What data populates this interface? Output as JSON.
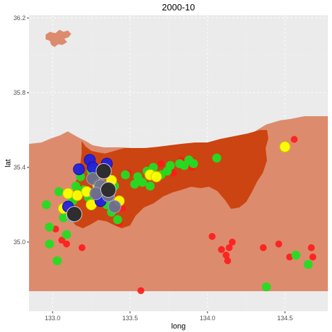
{
  "chart_data": {
    "type": "scatter",
    "title": "2000-10",
    "xlabel": "long",
    "ylabel": "lat",
    "xlim": [
      132.85,
      134.78
    ],
    "ylim": [
      34.62,
      36.22
    ],
    "x_ticks": [
      133.0,
      133.5,
      134.0,
      134.5
    ],
    "x_tick_labels": [
      "133.0",
      "133.5",
      "134.0",
      "134.5"
    ],
    "y_ticks": [
      35.0,
      35.4,
      35.8,
      36.2
    ],
    "y_tick_labels": [
      "35.0",
      "35.4",
      "35.8",
      "36.2"
    ],
    "grid": true,
    "legend": "none",
    "colors": {
      "panel_background": "#ebebeb",
      "land_outer": "#dd8b6d",
      "land_highlight": "#cc4411",
      "red": "#ff1a1a",
      "green": "#22dd22",
      "yellow": "#ffff00",
      "blue": "#2222dd",
      "slate": "#6a7090",
      "dark": "#2a2a2a"
    },
    "series": [
      {
        "color": "red",
        "points": [
          [
            133.02,
            35.07
          ],
          [
            133.06,
            35.01
          ],
          [
            133.09,
            34.99
          ],
          [
            133.19,
            34.97
          ],
          [
            133.43,
            35.1
          ],
          [
            133.45,
            35.18
          ],
          [
            133.49,
            35.37
          ],
          [
            133.55,
            35.34
          ],
          [
            133.57,
            34.74
          ],
          [
            133.62,
            35.39
          ],
          [
            133.7,
            35.42
          ],
          [
            133.78,
            35.37
          ],
          [
            133.83,
            35.44
          ],
          [
            133.9,
            35.4
          ],
          [
            134.03,
            35.03
          ],
          [
            134.09,
            34.96
          ],
          [
            134.12,
            34.93
          ],
          [
            134.14,
            34.97
          ],
          [
            134.13,
            34.9
          ],
          [
            134.16,
            35.0
          ],
          [
            134.36,
            34.97
          ],
          [
            134.46,
            34.99
          ],
          [
            134.53,
            34.92
          ],
          [
            134.56,
            35.55
          ],
          [
            134.67,
            34.97
          ],
          [
            134.68,
            34.92
          ]
        ]
      },
      {
        "color": "green",
        "points": [
          [
            132.96,
            35.2
          ],
          [
            132.98,
            35.08
          ],
          [
            132.98,
            34.99
          ],
          [
            133.03,
            34.9
          ],
          [
            133.04,
            35.27
          ],
          [
            133.07,
            35.13
          ],
          [
            133.09,
            35.04
          ],
          [
            133.11,
            35.25
          ],
          [
            133.13,
            35.22
          ],
          [
            133.15,
            35.3
          ],
          [
            133.18,
            35.35
          ],
          [
            133.2,
            35.28
          ],
          [
            133.23,
            35.24
          ],
          [
            133.25,
            35.38
          ],
          [
            133.35,
            35.2
          ],
          [
            133.38,
            35.16
          ],
          [
            133.4,
            35.3
          ],
          [
            133.42,
            35.12
          ],
          [
            133.47,
            35.36
          ],
          [
            133.53,
            35.31
          ],
          [
            133.55,
            35.35
          ],
          [
            133.58,
            35.32
          ],
          [
            133.61,
            35.38
          ],
          [
            133.63,
            35.3
          ],
          [
            133.65,
            35.4
          ],
          [
            133.7,
            35.36
          ],
          [
            133.74,
            35.38
          ],
          [
            133.76,
            35.41
          ],
          [
            133.82,
            35.42
          ],
          [
            133.85,
            35.41
          ],
          [
            133.88,
            35.44
          ],
          [
            133.91,
            35.42
          ],
          [
            134.06,
            35.45
          ],
          [
            134.38,
            34.76
          ],
          [
            134.57,
            34.93
          ],
          [
            134.65,
            34.88
          ]
        ]
      },
      {
        "color": "yellow",
        "points": [
          [
            133.07,
            35.18
          ],
          [
            133.1,
            35.26
          ],
          [
            133.16,
            35.25
          ],
          [
            133.22,
            35.27
          ],
          [
            133.25,
            35.2
          ],
          [
            133.29,
            35.31
          ],
          [
            133.38,
            35.33
          ],
          [
            133.43,
            35.22
          ],
          [
            133.63,
            35.36
          ],
          [
            133.67,
            35.35
          ],
          [
            134.5,
            35.51
          ]
        ]
      },
      {
        "color": "blue",
        "points": [
          [
            133.1,
            35.19
          ],
          [
            133.17,
            35.39
          ],
          [
            133.24,
            35.44
          ],
          [
            133.26,
            35.4
          ],
          [
            133.31,
            35.22
          ],
          [
            133.35,
            35.42
          ]
        ]
      },
      {
        "color": "slate",
        "points": [
          [
            133.13,
            35.14
          ],
          [
            133.26,
            35.34
          ],
          [
            133.31,
            35.3
          ],
          [
            133.33,
            35.37
          ],
          [
            133.36,
            35.25
          ],
          [
            133.4,
            35.19
          ],
          [
            133.28,
            35.26
          ]
        ]
      },
      {
        "color": "dark",
        "points": [
          [
            133.14,
            35.15
          ],
          [
            133.33,
            35.38
          ],
          [
            133.36,
            35.28
          ]
        ]
      }
    ]
  }
}
